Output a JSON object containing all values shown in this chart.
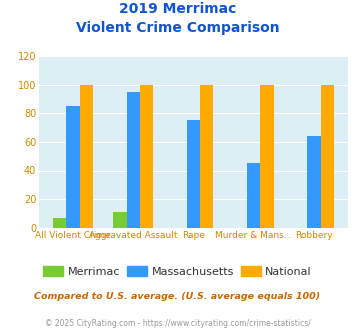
{
  "title_line1": "2019 Merrimac",
  "title_line2": "Violent Crime Comparison",
  "cat_labels_top": [
    "",
    "Aggravated Assault",
    "",
    "Murder & Mans...",
    ""
  ],
  "cat_labels_bottom": [
    "All Violent Crime",
    "",
    "Rape",
    "",
    "Robbery"
  ],
  "merrimac": [
    7,
    11,
    0,
    0,
    0
  ],
  "massachusetts": [
    85,
    95,
    75,
    45,
    64
  ],
  "national": [
    100,
    100,
    100,
    100,
    100
  ],
  "color_merrimac": "#77cc33",
  "color_massachusetts": "#3399ff",
  "color_national": "#ffaa00",
  "ylim": [
    0,
    120
  ],
  "yticks": [
    0,
    20,
    40,
    60,
    80,
    100,
    120
  ],
  "background_color": "#ddeef5",
  "title_color": "#1155cc",
  "axis_label_color": "#cc8800",
  "legend_label_color": "#333333",
  "footnote": "Compared to U.S. average. (U.S. average equals 100)",
  "copyright": "© 2025 CityRating.com - https://www.cityrating.com/crime-statistics/",
  "footnote_color": "#cc6600",
  "copyright_color": "#999999",
  "bar_width": 0.22
}
